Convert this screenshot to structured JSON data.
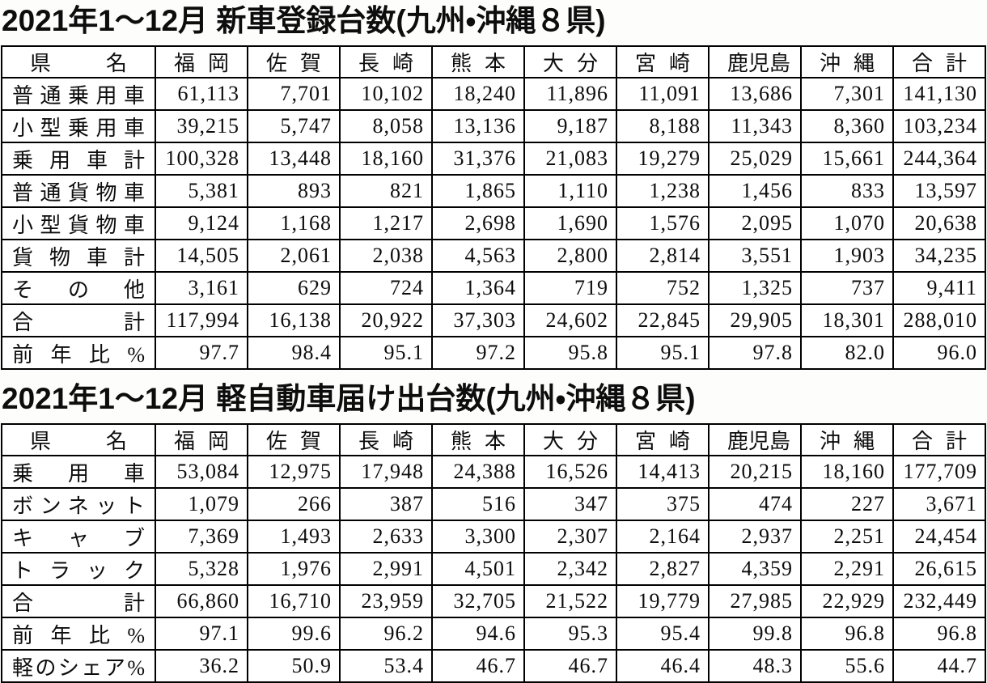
{
  "tables": [
    {
      "title": "2021年1～12月 新車登録台数(九州・沖縄８県)",
      "columns": [
        "県名",
        "福岡",
        "佐賀",
        "長崎",
        "熊本",
        "大分",
        "宮崎",
        "鹿児島",
        "沖縄",
        "合計"
      ],
      "rows": [
        {
          "label": "普通乗用車",
          "values": [
            "61,113",
            "7,701",
            "10,102",
            "18,240",
            "11,896",
            "11,091",
            "13,686",
            "7,301",
            "141,130"
          ]
        },
        {
          "label": "小型乗用車",
          "values": [
            "39,215",
            "5,747",
            "8,058",
            "13,136",
            "9,187",
            "8,188",
            "11,343",
            "8,360",
            "103,234"
          ]
        },
        {
          "label": "乗用車計",
          "values": [
            "100,328",
            "13,448",
            "18,160",
            "31,376",
            "21,083",
            "19,279",
            "25,029",
            "15,661",
            "244,364"
          ]
        },
        {
          "label": "普通貨物車",
          "values": [
            "5,381",
            "893",
            "821",
            "1,865",
            "1,110",
            "1,238",
            "1,456",
            "833",
            "13,597"
          ]
        },
        {
          "label": "小型貨物車",
          "values": [
            "9,124",
            "1,168",
            "1,217",
            "2,698",
            "1,690",
            "1,576",
            "2,095",
            "1,070",
            "20,638"
          ]
        },
        {
          "label": "貨物車計",
          "values": [
            "14,505",
            "2,061",
            "2,038",
            "4,563",
            "2,800",
            "2,814",
            "3,551",
            "1,903",
            "34,235"
          ]
        },
        {
          "label": "その他",
          "values": [
            "3,161",
            "629",
            "724",
            "1,364",
            "719",
            "752",
            "1,325",
            "737",
            "9,411"
          ]
        },
        {
          "label": "合計",
          "values": [
            "117,994",
            "16,138",
            "20,922",
            "37,303",
            "24,602",
            "22,845",
            "29,905",
            "18,301",
            "288,010"
          ]
        },
        {
          "label": "前年比%",
          "values": [
            "97.7",
            "98.4",
            "95.1",
            "97.2",
            "95.8",
            "95.1",
            "97.8",
            "82.0",
            "96.0"
          ]
        }
      ]
    },
    {
      "title": "2021年1～12月 軽自動車届け出台数(九州・沖縄８県)",
      "columns": [
        "県名",
        "福岡",
        "佐賀",
        "長崎",
        "熊本",
        "大分",
        "宮崎",
        "鹿児島",
        "沖縄",
        "合計"
      ],
      "rows": [
        {
          "label": "乗用車",
          "values": [
            "53,084",
            "12,975",
            "17,948",
            "24,388",
            "16,526",
            "14,413",
            "20,215",
            "18,160",
            "177,709"
          ]
        },
        {
          "label": "ボンネット",
          "values": [
            "1,079",
            "266",
            "387",
            "516",
            "347",
            "375",
            "474",
            "227",
            "3,671"
          ]
        },
        {
          "label": "キャブ",
          "values": [
            "7,369",
            "1,493",
            "2,633",
            "3,300",
            "2,307",
            "2,164",
            "2,937",
            "2,251",
            "24,454"
          ]
        },
        {
          "label": "トラック",
          "values": [
            "5,328",
            "1,976",
            "2,991",
            "4,501",
            "2,342",
            "2,827",
            "4,359",
            "2,291",
            "26,615"
          ]
        },
        {
          "label": "合計",
          "values": [
            "66,860",
            "16,710",
            "23,959",
            "32,705",
            "21,522",
            "19,779",
            "27,985",
            "22,929",
            "232,449"
          ]
        },
        {
          "label": "前年比%",
          "values": [
            "97.1",
            "99.6",
            "96.2",
            "94.6",
            "95.3",
            "95.4",
            "99.8",
            "96.8",
            "96.8"
          ]
        },
        {
          "label": "軽のシェア%",
          "values": [
            "36.2",
            "50.9",
            "53.4",
            "46.7",
            "46.7",
            "46.4",
            "48.3",
            "55.6",
            "44.7"
          ]
        }
      ]
    }
  ]
}
